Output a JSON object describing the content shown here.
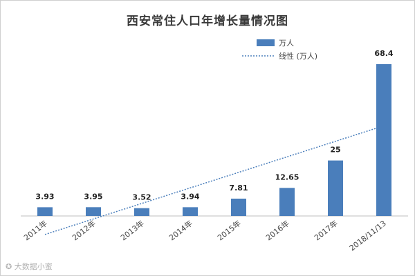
{
  "chart_data": {
    "type": "bar",
    "title": "西安常住人口年增长量情况图",
    "categories": [
      "2011年",
      "2012年",
      "2013年",
      "2014年",
      "2015年",
      "2016年",
      "2017年",
      "2018/11/13"
    ],
    "series": [
      {
        "name": "万人",
        "values": [
          3.93,
          3.95,
          3.52,
          3.94,
          7.81,
          12.65,
          25,
          68.4
        ]
      }
    ],
    "data_labels": [
      "3.93",
      "3.95",
      "3.52",
      "3.94",
      "7.81",
      "12.65",
      "25",
      "68.4"
    ],
    "trendline": {
      "name": "线性 (万人)",
      "type": "linear"
    },
    "ylim": [
      0,
      75
    ],
    "grid": false,
    "legend": "top-right",
    "colors": {
      "bar": "#4a7ebb",
      "trend": "#4a7ebb",
      "axis": "#bfbfbf"
    }
  },
  "watermark": "大数据小蜜"
}
